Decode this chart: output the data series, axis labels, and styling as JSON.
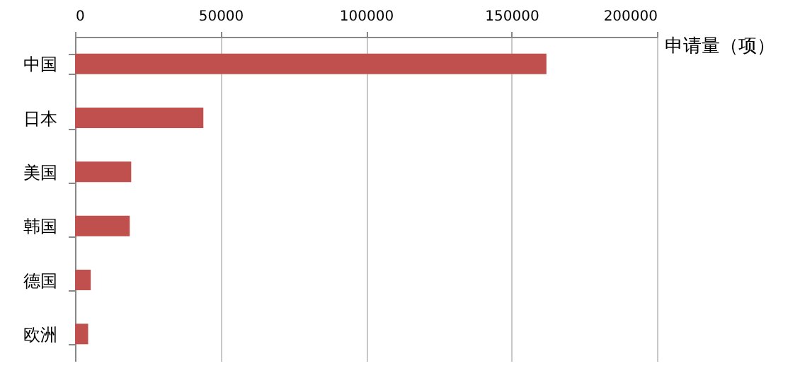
{
  "chart_data": {
    "type": "bar",
    "orientation": "horizontal",
    "xlabel": "申请量（项）",
    "categories": [
      "中国",
      "日本",
      "美国",
      "韩国",
      "德国",
      "欧洲"
    ],
    "values": [
      162000,
      44100,
      19300,
      18800,
      5400,
      4500
    ],
    "color": "#c0504d",
    "xlim": [
      0,
      200000
    ],
    "xticks": [
      0,
      50000,
      100000,
      150000,
      200000
    ],
    "grid": "x"
  }
}
